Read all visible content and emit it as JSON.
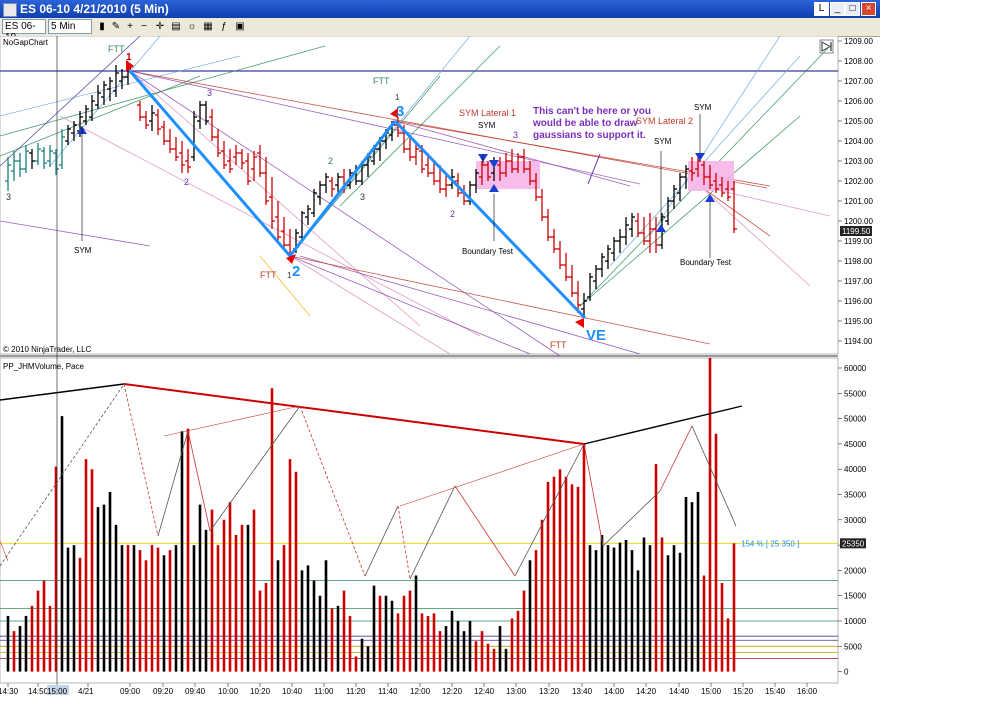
{
  "window": {
    "title": "ES 06-10  4/21/2010 (5 Min)",
    "btn_l": "L"
  },
  "toolbar": {
    "instrument": "ES 06-10",
    "interval": "5 Min"
  },
  "price_panel": {
    "label": "NoGapChart",
    "copyright": "© 2010 NinjaTrader, LLC",
    "price_ticks": [
      "1209.00",
      "1208.00",
      "1207.00",
      "1206.00",
      "1205.00",
      "1204.00",
      "1203.00",
      "1202.00",
      "1201.00",
      "1200.00",
      "1199.00",
      "1198.00",
      "1197.00",
      "1196.00",
      "1195.00",
      "1194.00"
    ],
    "last_price": "1199.50",
    "annotation": "This can't be here or you would be able to draw gaussians to support it.",
    "labels": {
      "ftt_1": "FTT",
      "ftt_2": "FTT",
      "ftt_3": "FTT",
      "ftt_4": "FTT",
      "point_1": "1",
      "point_2": "2",
      "point_3": "3",
      "point_ve": "VE",
      "sym_1": "SYM",
      "sym_2": "SYM",
      "sym_3": "SYM",
      "sym_4": "SYM",
      "sym_lateral_1": "SYM Lateral 1",
      "sym_lateral_2": "SYM Lateral 2",
      "boundary_test_1": "Boundary Test",
      "boundary_test_2": "Boundary Test",
      "small_3a": "3",
      "small_3b": "3",
      "small_3c": "3",
      "small_3d": "3",
      "small_2a": "2",
      "small_2b": "2",
      "small_2c": "2",
      "small_1a": "1",
      "small_1b": "1"
    }
  },
  "volume_panel": {
    "label": "PP_JHMVolume, Pace",
    "vol_ticks": [
      "60000",
      "55000",
      "50000",
      "45000",
      "40000",
      "35000",
      "30000",
      "25000",
      "20000",
      "15000",
      "10000",
      "5000",
      "0"
    ],
    "last_value": "25350",
    "pace_label": "154 % [ 25 350 ]"
  },
  "time_axis": [
    "14:30",
    "14:50",
    "15:00",
    "4/21",
    "09:00",
    "09:20",
    "09:40",
    "10:00",
    "10:20",
    "10:40",
    "11:00",
    "11:20",
    "11:40",
    "12:00",
    "12:20",
    "12:40",
    "13:00",
    "13:20",
    "13:40",
    "14:00",
    "14:20",
    "14:40",
    "15:00",
    "15:20",
    "15:40",
    "16:00"
  ],
  "colors": {
    "up": "#000000",
    "down": "#cc0000",
    "swing": "#1e90ff",
    "purple": "#6b2fa0",
    "pink_box": "#f7b5e8"
  }
}
